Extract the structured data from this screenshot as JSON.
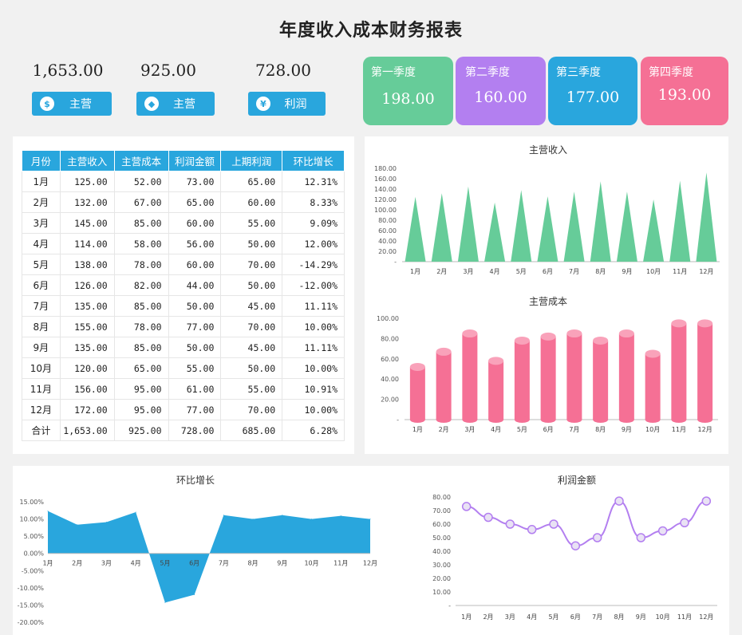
{
  "header": {
    "title": "年度收入成本财务报表"
  },
  "kpis": [
    {
      "value": "1,653.00",
      "label": "主营",
      "icon": "coin-bag-icon"
    },
    {
      "value": "925.00",
      "label": "主营",
      "icon": "tag-icon"
    },
    {
      "value": "728.00",
      "label": "利润",
      "icon": "yen-icon"
    }
  ],
  "quarters": [
    {
      "name": "第一季度",
      "value": "198.00",
      "color": "#66cc99"
    },
    {
      "name": "第二季度",
      "value": "160.00",
      "color": "#b37ff0"
    },
    {
      "name": "第三季度",
      "value": "177.00",
      "color": "#29a6dd"
    },
    {
      "name": "第四季度",
      "value": "193.00",
      "color": "#f57095"
    }
  ],
  "table": {
    "headers": [
      "月份",
      "主营收入",
      "主营成本",
      "利润金额",
      "上期利润",
      "环比增长"
    ],
    "rows": [
      [
        "1月",
        "125.00",
        "52.00",
        "73.00",
        "65.00",
        "12.31%"
      ],
      [
        "2月",
        "132.00",
        "67.00",
        "65.00",
        "60.00",
        "8.33%"
      ],
      [
        "3月",
        "145.00",
        "85.00",
        "60.00",
        "55.00",
        "9.09%"
      ],
      [
        "4月",
        "114.00",
        "58.00",
        "56.00",
        "50.00",
        "12.00%"
      ],
      [
        "5月",
        "138.00",
        "78.00",
        "60.00",
        "70.00",
        "-14.29%"
      ],
      [
        "6月",
        "126.00",
        "82.00",
        "44.00",
        "50.00",
        "-12.00%"
      ],
      [
        "7月",
        "135.00",
        "85.00",
        "50.00",
        "45.00",
        "11.11%"
      ],
      [
        "8月",
        "155.00",
        "78.00",
        "77.00",
        "70.00",
        "10.00%"
      ],
      [
        "9月",
        "135.00",
        "85.00",
        "50.00",
        "45.00",
        "11.11%"
      ],
      [
        "10月",
        "120.00",
        "65.00",
        "55.00",
        "50.00",
        "10.00%"
      ],
      [
        "11月",
        "156.00",
        "95.00",
        "61.00",
        "55.00",
        "10.91%"
      ],
      [
        "12月",
        "172.00",
        "95.00",
        "77.00",
        "70.00",
        "10.00%"
      ],
      [
        "合计",
        "1,653.00",
        "925.00",
        "728.00",
        "685.00",
        "6.28%"
      ]
    ]
  },
  "chart_data": [
    {
      "type": "bar",
      "title": "主营收入",
      "categories": [
        "1月",
        "2月",
        "3月",
        "4月",
        "5月",
        "6月",
        "7月",
        "8月",
        "9月",
        "10月",
        "11月",
        "12月"
      ],
      "values": [
        125,
        132,
        145,
        114,
        138,
        126,
        135,
        155,
        135,
        120,
        156,
        172
      ],
      "yticks": [
        "-",
        "20.00",
        "40.00",
        "60.00",
        "80.00",
        "100.00",
        "120.00",
        "140.00",
        "160.00",
        "180.00"
      ],
      "ylim": [
        0,
        180
      ],
      "color": "#66cc99"
    },
    {
      "type": "bar",
      "title": "主营成本",
      "categories": [
        "1月",
        "2月",
        "3月",
        "4月",
        "5月",
        "6月",
        "7月",
        "8月",
        "9月",
        "10月",
        "11月",
        "12月"
      ],
      "values": [
        52,
        67,
        85,
        58,
        78,
        82,
        85,
        78,
        85,
        65,
        95,
        95
      ],
      "yticks": [
        "-",
        "20.00",
        "40.00",
        "60.00",
        "80.00",
        "100.00"
      ],
      "ylim": [
        0,
        100
      ],
      "color": "#f57095"
    },
    {
      "type": "area",
      "title": "环比增长",
      "categories": [
        "1月",
        "2月",
        "3月",
        "4月",
        "5月",
        "6月",
        "7月",
        "8月",
        "9月",
        "10月",
        "11月",
        "12月"
      ],
      "values": [
        12.31,
        8.33,
        9.09,
        12.0,
        -14.29,
        -12.0,
        11.11,
        10.0,
        11.11,
        10.0,
        10.91,
        10.0
      ],
      "yticks": [
        "-20.00%",
        "-15.00%",
        "-10.00%",
        "-5.00%",
        "0.00%",
        "5.00%",
        "10.00%",
        "15.00%"
      ],
      "ylim": [
        -20,
        15
      ],
      "color": "#29a6dd"
    },
    {
      "type": "line",
      "title": "利润金额",
      "categories": [
        "1月",
        "2月",
        "3月",
        "4月",
        "5月",
        "6月",
        "7月",
        "8月",
        "9月",
        "10月",
        "11月",
        "12月"
      ],
      "values": [
        73,
        65,
        60,
        56,
        60,
        44,
        50,
        77,
        50,
        55,
        61,
        77
      ],
      "yticks": [
        "-",
        "10.00",
        "20.00",
        "30.00",
        "40.00",
        "50.00",
        "60.00",
        "70.00",
        "80.00"
      ],
      "ylim": [
        0,
        80
      ],
      "color": "#b37ff0"
    }
  ]
}
